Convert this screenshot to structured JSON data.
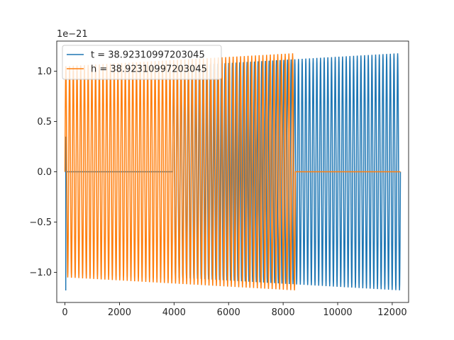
{
  "chart_data": {
    "type": "line",
    "title": "",
    "xlabel": "",
    "ylabel": "",
    "y_offset_label": "1e−21",
    "xlim": [
      -300,
      12600
    ],
    "ylim": [
      -1.3,
      1.3
    ],
    "grid": false,
    "legend_position": "top-left",
    "x_ticks": [
      {
        "value": 0,
        "label": "0"
      },
      {
        "value": 2000,
        "label": "2000"
      },
      {
        "value": 4000,
        "label": "4000"
      },
      {
        "value": 6000,
        "label": "6000"
      },
      {
        "value": 8000,
        "label": "8000"
      },
      {
        "value": 10000,
        "label": "10000"
      },
      {
        "value": 12000,
        "label": "12000"
      }
    ],
    "y_ticks": [
      {
        "value": 1.0,
        "label": "1.0"
      },
      {
        "value": 0.5,
        "label": "0.5"
      },
      {
        "value": 0.0,
        "label": "0.0"
      },
      {
        "value": -0.5,
        "label": "−0.5"
      },
      {
        "value": -1.0,
        "label": "−1.0"
      }
    ],
    "series": [
      {
        "name": "t = 38.92310997203045",
        "color": "#1f77b4",
        "description_segments": [
          {
            "kind": "flat",
            "x_start": 0,
            "x_end": 3950,
            "value": 0.0
          },
          {
            "kind": "oscillation",
            "x_start": 3950,
            "x_end": 12300,
            "amp_start": 1.05,
            "amp_end": 1.18,
            "cycles": 62
          }
        ],
        "initial_spike": {
          "x": 30,
          "min": -1.18,
          "max": 0.35
        }
      },
      {
        "name": "h = 38.92310997203045",
        "color": "#ff7f0e",
        "description_segments": [
          {
            "kind": "oscillation",
            "x_start": 0,
            "x_end": 8450,
            "amp_start": 1.05,
            "amp_end": 1.18,
            "cycles": 62
          },
          {
            "kind": "flat",
            "x_start": 8450,
            "x_end": 12300,
            "value": 0.0
          }
        ]
      }
    ]
  }
}
